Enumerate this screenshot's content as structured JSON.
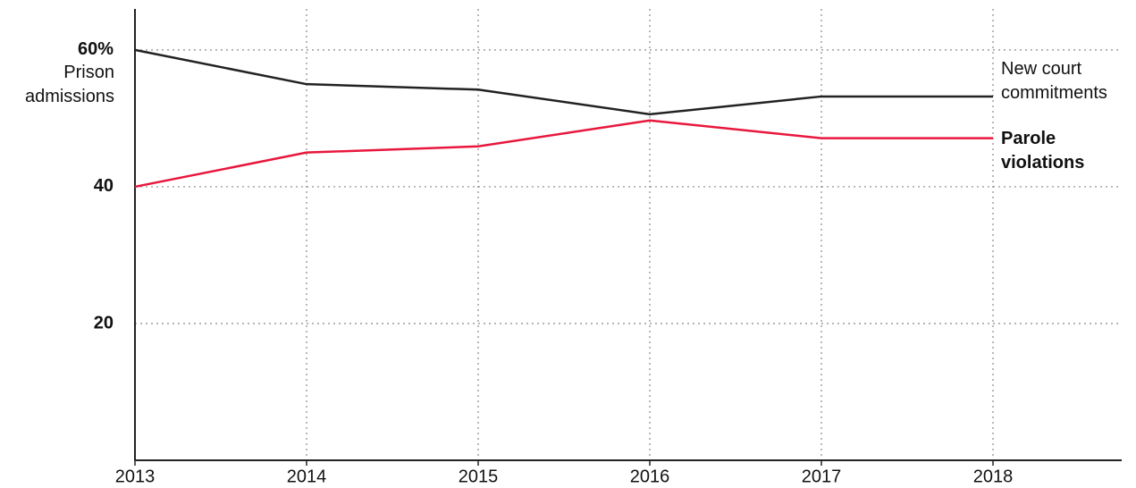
{
  "chart_data": {
    "type": "line",
    "ylabel": "Prison admissions",
    "x": [
      2013,
      2014,
      2015,
      2016,
      2017,
      2018
    ],
    "xlim": [
      2013,
      2018.75
    ],
    "xticks": [
      2013,
      2014,
      2015,
      2016,
      2017,
      2018
    ],
    "ylim": [
      0,
      66
    ],
    "yticks": [
      20,
      40,
      {
        "value": 60,
        "label": "60%"
      }
    ],
    "grid": true,
    "series": [
      {
        "name": "New court commitments",
        "color": "#222222",
        "values": [
          60,
          55.0,
          54.2,
          50.6,
          53.2,
          53.2
        ]
      },
      {
        "name": "Parole violations",
        "color": "#e8173c",
        "values": [
          40,
          45.0,
          45.9,
          49.7,
          47.1,
          47.1
        ]
      }
    ]
  }
}
